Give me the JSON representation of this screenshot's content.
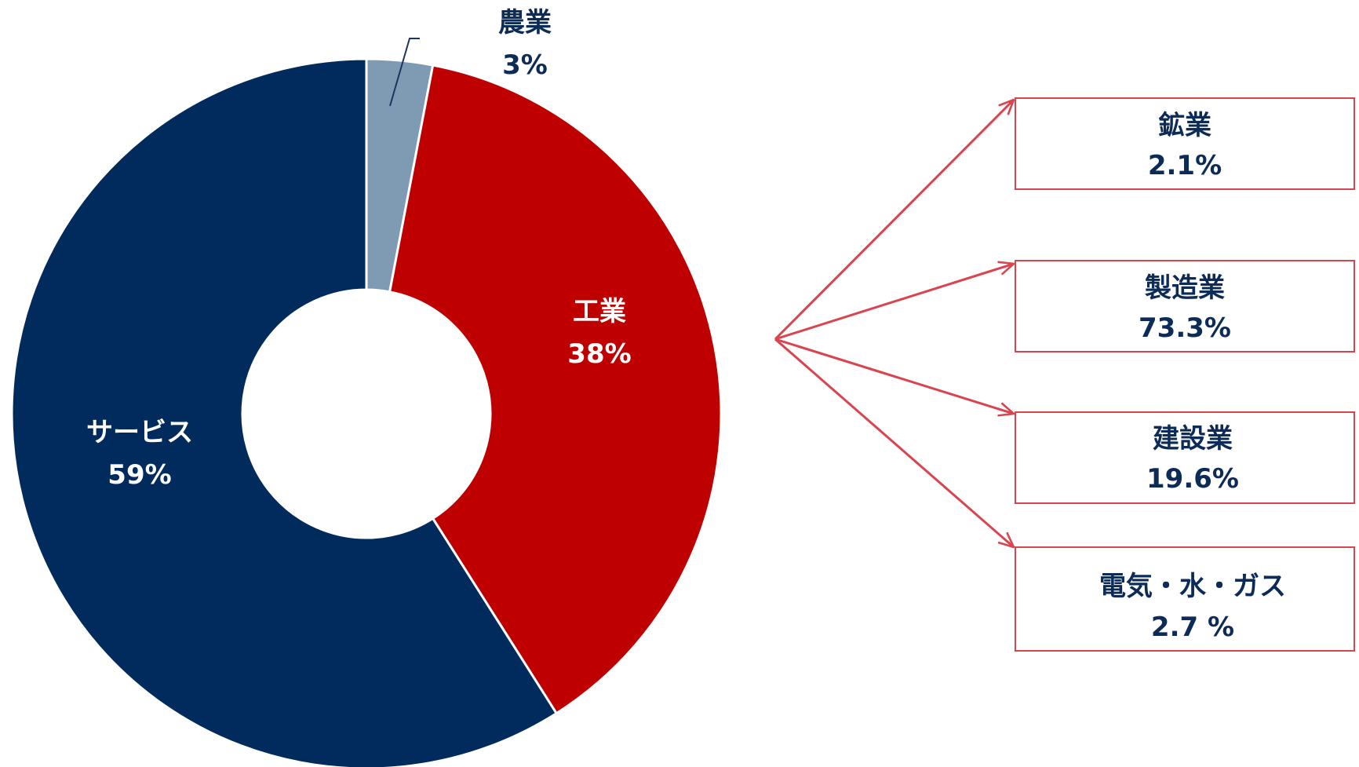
{
  "chart_data": [
    {
      "type": "pie",
      "variant": "donut",
      "slices": [
        {
          "name": "農業",
          "label": "3%",
          "value": 3,
          "color": "#7f9bb3"
        },
        {
          "name": "工業",
          "label": "38%",
          "value": 38,
          "color": "#bf0000"
        },
        {
          "name": "サービス",
          "label": "59%",
          "value": 59,
          "color": "#002b5c"
        }
      ],
      "legend": "none"
    },
    {
      "type": "table",
      "breakdown_of": "工業",
      "items": [
        {
          "name": "鉱業",
          "label": "2.1%",
          "value": 2.1
        },
        {
          "name": "製造業",
          "label": "73.3%",
          "value": 73.3
        },
        {
          "name": "建設業",
          "label": "19.6%",
          "value": 19.6
        },
        {
          "name": "電気・水・ガス",
          "label": "2.7 %",
          "value": 2.7
        }
      ],
      "arrow_color": "#d9444f",
      "box_border_color": "#d9444f"
    }
  ]
}
